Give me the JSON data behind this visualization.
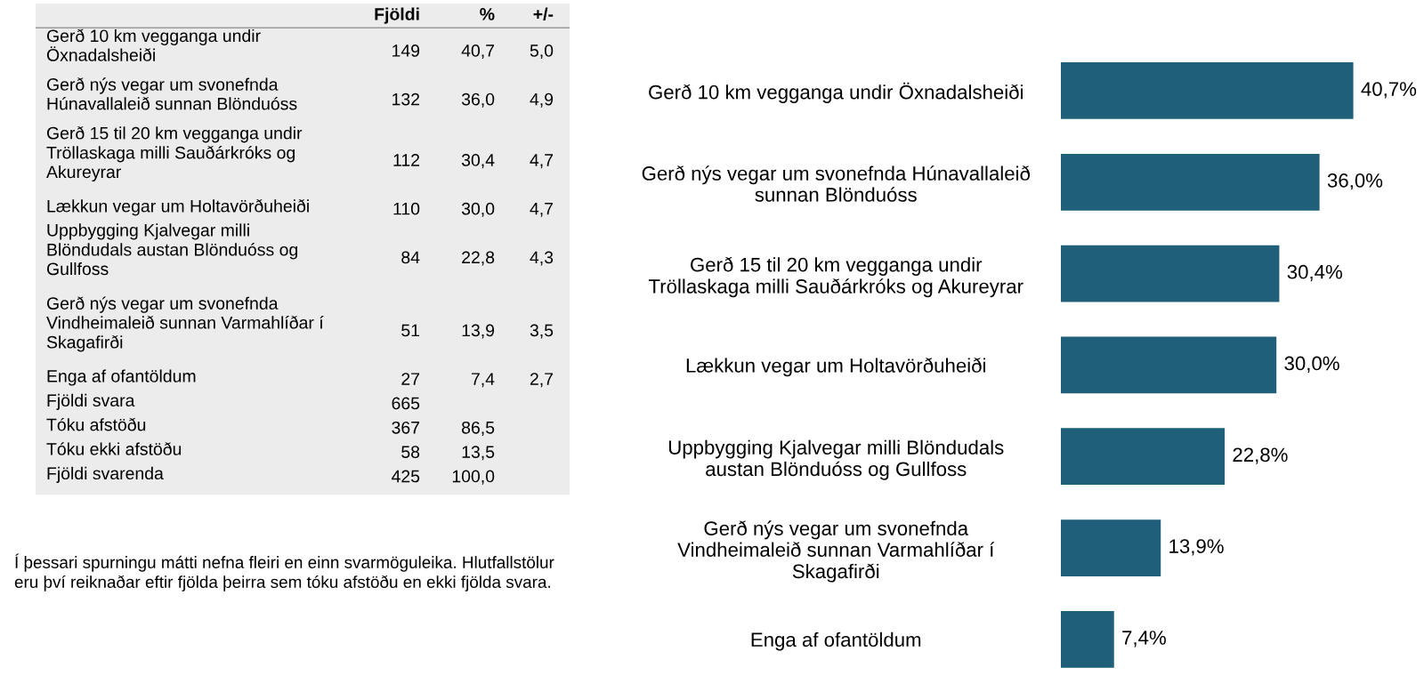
{
  "chart_data": [
    {
      "type": "other",
      "categories": [
        "Gerð 10 km vegganga undir\nÖxnadalsheiði",
        "Gerð nýs vegar um svonefnda\nHúnavallaleið sunnan Blönduóss",
        "Gerð 15 til 20 km vegganga undir\nTröllaskaga milli Sauðárkróks og\nAkureyrar",
        "Lækkun vegar um Holtavörðuheiði",
        "Uppbygging Kjalvegar milli\nBlöndudals austan Blönduóss og\nGullfoss",
        "Gerð nýs vegar um svonefnda\nVindheimaleið sunnan Varmahlíðar í\nSkagafirði",
        "Enga af ofantöldum",
        "Fjöldi svara",
        "Tóku afstöðu",
        "Tóku ekki afstöðu",
        "Fjöldi svarenda"
      ],
      "series": [
        {
          "name": "Fjöldi",
          "values": [
            149,
            132,
            112,
            110,
            84,
            51,
            27,
            665,
            367,
            58,
            425
          ],
          "value_labels": [
            "149",
            "132",
            "112",
            "110",
            "84",
            "51",
            "27",
            "665",
            "367",
            "58",
            "425"
          ]
        },
        {
          "name": "%",
          "values": [
            40.7,
            36.0,
            30.4,
            30.0,
            22.8,
            13.9,
            7.4,
            null,
            86.5,
            13.5,
            100.0
          ],
          "value_labels": [
            "40,7",
            "36,0",
            "30,4",
            "30,0",
            "22,8",
            "13,9",
            "7,4",
            null,
            "86,5",
            "13,5",
            "100,0"
          ]
        },
        {
          "name": "+/-",
          "values": [
            5.0,
            4.9,
            4.7,
            4.7,
            4.3,
            3.5,
            2.7,
            null,
            null,
            null,
            null
          ],
          "value_labels": [
            "5,0",
            "4,9",
            "4,7",
            "4,7",
            "4,3",
            "3,5",
            "2,7",
            null,
            null,
            null,
            null
          ]
        }
      ],
      "annotations": [
        "Í þessari spurningu mátti nefna fleiri en einn svarmöguleika. Hlutfallstölur\neru því reiknaðar eftir fjölda þeirra sem tóku afstöðu en ekki fjölda svara."
      ]
    },
    {
      "type": "bar",
      "orientation": "horizontal",
      "color": "#1f5f7a",
      "categories": [
        "Gerð 10 km vegganga undir Öxnadalsheiði",
        "Gerð nýs vegar um svonefnda Húnavallaleið\nsunnan Blönduóss",
        "Gerð 15 til 20 km vegganga undir\nTröllaskaga milli Sauðárkróks og Akureyrar",
        "Lækkun vegar um Holtavörðuheiði",
        "Uppbygging Kjalvegar milli Blöndudals\naustan Blönduóss og Gullfoss",
        "Gerð nýs vegar um svonefnda\nVindheimaleið sunnan Varmahlíðar í\nSkagafirði",
        "Enga af ofantöldum"
      ],
      "values": [
        40.7,
        36.0,
        30.4,
        30.0,
        22.8,
        13.9,
        7.4
      ],
      "value_labels": [
        "40,7%",
        "36,0%",
        "30,4%",
        "30,0%",
        "22,8%",
        "13,9%",
        "7,4%"
      ]
    }
  ]
}
